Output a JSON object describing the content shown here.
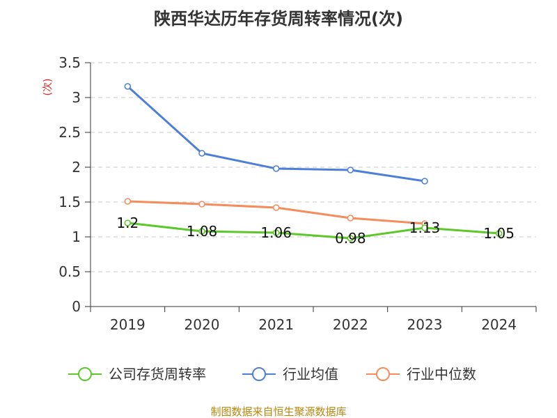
{
  "chart_data": {
    "type": "line",
    "title": "陕西华达历年存货周转率情况(次)",
    "ylabel": "(次)",
    "xlabel": "",
    "categories": [
      "2019",
      "2020",
      "2021",
      "2022",
      "2023",
      "2024"
    ],
    "ylim": [
      0,
      3.5
    ],
    "yticks": [
      "0",
      "0.5",
      "1",
      "1.5",
      "2",
      "2.5",
      "3",
      "3.5"
    ],
    "grid": "horizontal-dashed",
    "legend_position": "bottom",
    "series": [
      {
        "name": "公司存货周转率",
        "color": "#5cc82a",
        "values": [
          1.2,
          1.08,
          1.06,
          0.98,
          1.13,
          1.05
        ],
        "labels": [
          "1.2",
          "1.08",
          "1.06",
          "0.98",
          "1.13",
          "1.05"
        ]
      },
      {
        "name": "行业均值",
        "color": "#4e7fd8",
        "values": [
          3.16,
          2.2,
          1.98,
          1.96,
          1.8,
          null
        ]
      },
      {
        "name": "行业中位数",
        "color": "#f48c5c",
        "values": [
          1.51,
          1.47,
          1.42,
          1.27,
          1.19,
          null
        ]
      }
    ],
    "source": "制图数据来自恒生聚源数据库"
  }
}
